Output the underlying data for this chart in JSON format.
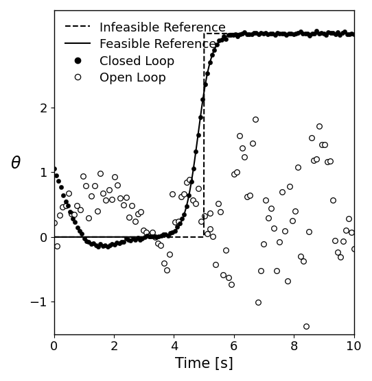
{
  "title": "",
  "xlabel": "Time [s]",
  "ylabel": "$\\theta$",
  "xlim": [
    0,
    10
  ],
  "ylim": [
    -1.5,
    3.5
  ],
  "yticks": [
    -1,
    0,
    1,
    2
  ],
  "xticks": [
    0,
    2,
    4,
    6,
    8,
    10
  ],
  "legend_entries": [
    "Infeasible Reference",
    "Feasible Reference",
    "Closed Loop",
    "Open Loop"
  ],
  "infeasible_step_time": 5.0,
  "infeasible_value_before": 0.0,
  "infeasible_value_after": 3.14159265,
  "background_color": "#ffffff",
  "line_color": "black",
  "tick_label_fontsize": 13,
  "axis_label_fontsize": 15,
  "legend_fontsize": 13
}
